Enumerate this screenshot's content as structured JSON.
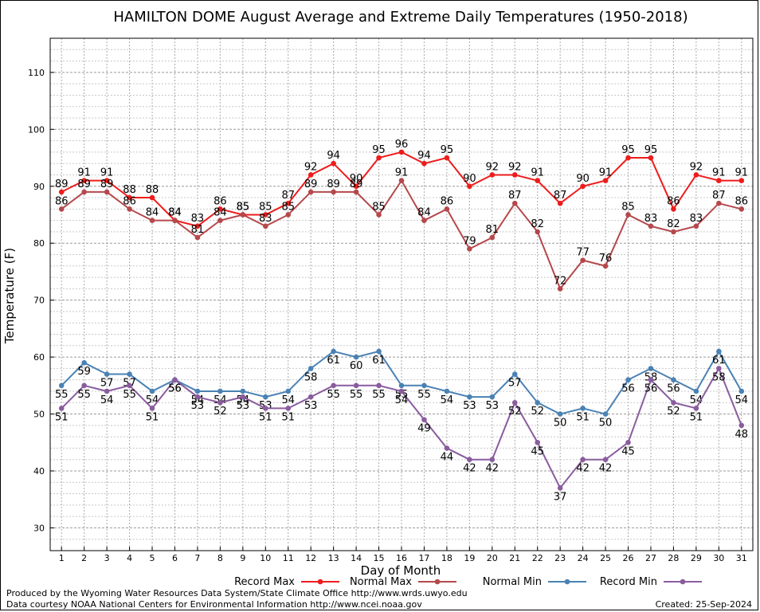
{
  "chart_data": {
    "type": "line",
    "title": "HAMILTON DOME August Average and Extreme Daily Temperatures (1950-2018)",
    "xlabel": "Day of Month",
    "ylabel": "Temperature (F)",
    "x": [
      1,
      2,
      3,
      4,
      5,
      6,
      7,
      8,
      9,
      10,
      11,
      12,
      13,
      14,
      15,
      16,
      17,
      18,
      19,
      20,
      21,
      22,
      23,
      24,
      25,
      26,
      27,
      28,
      29,
      30,
      31
    ],
    "xlim": [
      0.5,
      31.5
    ],
    "ylim": [
      26,
      116
    ],
    "yticks": [
      30,
      40,
      50,
      60,
      70,
      80,
      90,
      100,
      110
    ],
    "grid": true,
    "legend_position": "bottom",
    "series": [
      {
        "name": "Record Max",
        "color": "#ee1c1c",
        "label_pos": "above",
        "values": [
          89,
          91,
          91,
          88,
          88,
          84,
          83,
          86,
          85,
          85,
          87,
          92,
          94,
          90,
          95,
          96,
          94,
          95,
          90,
          92,
          92,
          91,
          87,
          90,
          91,
          95,
          95,
          86,
          92,
          91,
          91
        ]
      },
      {
        "name": "Normal Max",
        "color": "#b5484c",
        "label_pos": "above",
        "values": [
          86,
          89,
          89,
          86,
          84,
          84,
          81,
          84,
          85,
          83,
          85,
          89,
          89,
          89,
          85,
          91,
          84,
          86,
          79,
          81,
          87,
          82,
          72,
          77,
          76,
          85,
          83,
          82,
          83,
          87,
          86
        ]
      },
      {
        "name": "Normal Min",
        "color": "#4a82b4",
        "label_pos": "below",
        "values": [
          55,
          59,
          57,
          57,
          54,
          56,
          54,
          54,
          54,
          53,
          54,
          58,
          61,
          60,
          61,
          55,
          55,
          54,
          53,
          53,
          57,
          52,
          50,
          51,
          50,
          56,
          58,
          56,
          54,
          61,
          54
        ]
      },
      {
        "name": "Record Min",
        "color": "#8a5c9e",
        "label_pos": "below",
        "values": [
          51,
          55,
          54,
          55,
          51,
          56,
          53,
          52,
          53,
          51,
          51,
          53,
          55,
          55,
          55,
          54,
          49,
          44,
          42,
          42,
          52,
          45,
          37,
          42,
          42,
          45,
          56,
          52,
          51,
          58,
          48
        ]
      }
    ]
  },
  "footer": {
    "line1": "Produced by the Wyoming Water Resources Data System/State Climate Office http://www.wrds.uwyo.edu",
    "line2": "Data courtesy NOAA National Centers for Environmental Information http://www.ncei.noaa.gov",
    "created": "Created:  25-Sep-2024"
  }
}
